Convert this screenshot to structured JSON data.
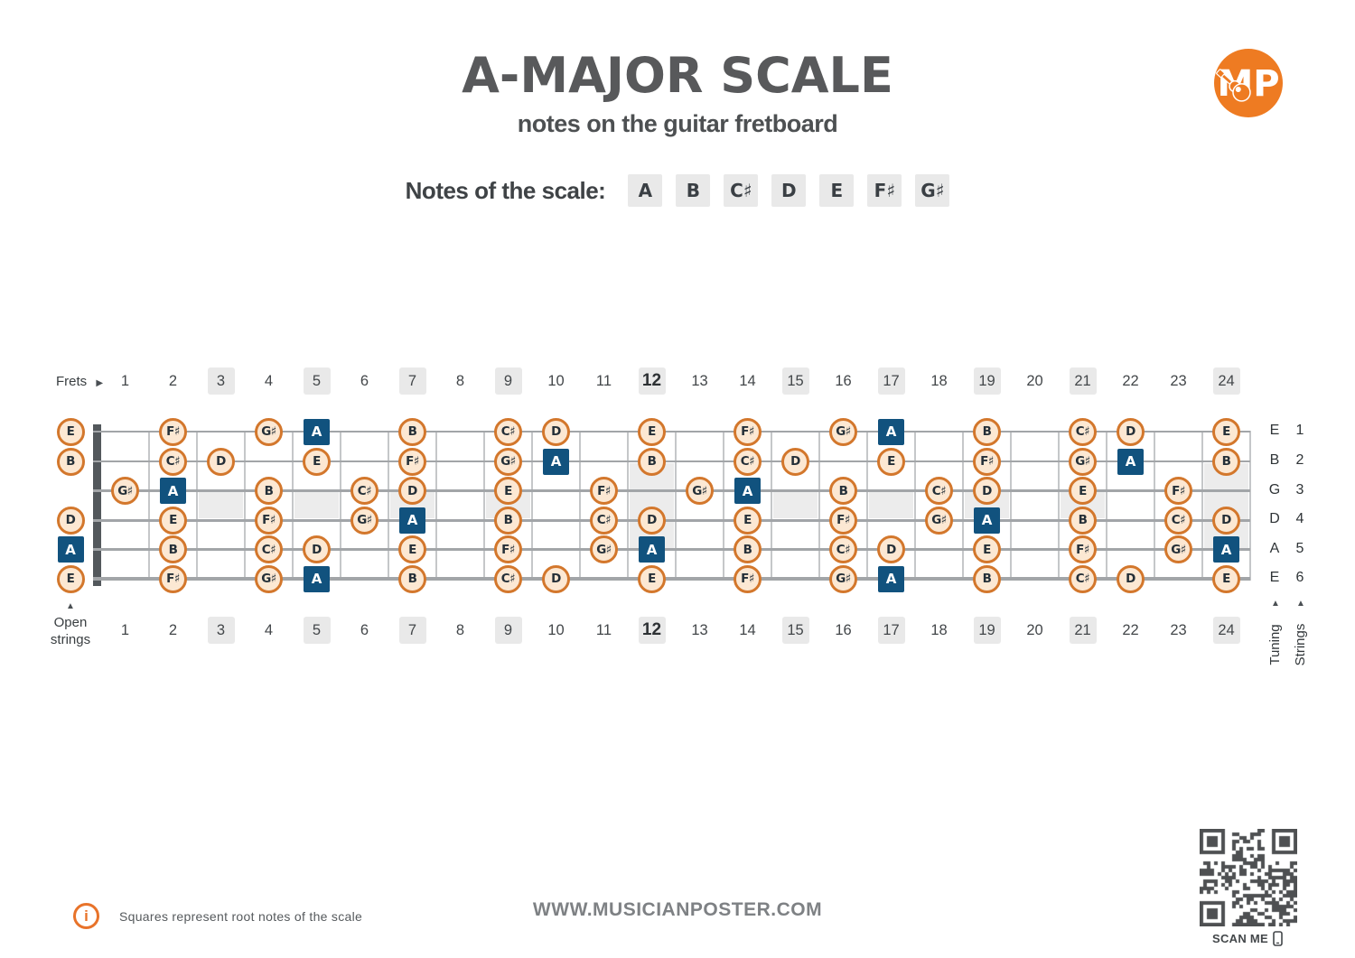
{
  "header": {
    "title": "A-MAJOR SCALE",
    "subtitle": "notes on the guitar fretboard",
    "logo_text": "MP"
  },
  "scale": {
    "label": "Notes of the scale:",
    "notes": [
      "A",
      "B",
      "C♯",
      "D",
      "E",
      "F♯",
      "G♯"
    ]
  },
  "icons": {
    "frets_arrow": "▶",
    "up_arrow": "▲"
  },
  "colors": {
    "accent_orange": "#ee7b22",
    "note_border_orange": "#d3772c",
    "note_fill": "#fce8d3",
    "root_blue": "#11527e",
    "highlight_gray": "#e9e9e9",
    "title_gray": "#58595b"
  },
  "fretboard": {
    "frets_label": "Frets",
    "open_label_line1": "Open",
    "open_label_line2": "strings",
    "tuning_label": "Tuning",
    "strings_label": "Strings",
    "fret_count": 24,
    "fret_numbers": [
      1,
      2,
      3,
      4,
      5,
      6,
      7,
      8,
      9,
      10,
      11,
      12,
      13,
      14,
      15,
      16,
      17,
      18,
      19,
      20,
      21,
      22,
      23,
      24
    ],
    "highlighted_frets": [
      3,
      5,
      7,
      9,
      12,
      15,
      17,
      19,
      21,
      24
    ],
    "bold_fret": 12,
    "single_inlay_frets": [
      3,
      5,
      7,
      9,
      15,
      17,
      19,
      21
    ],
    "double_inlay_frets": [
      12,
      24
    ],
    "strings": [
      {
        "number": 1,
        "tuning": "E",
        "open": {
          "note": "E",
          "root": false
        },
        "notes": [
          {
            "fret": 2,
            "note": "F♯"
          },
          {
            "fret": 4,
            "note": "G♯"
          },
          {
            "fret": 5,
            "note": "A",
            "root": true
          },
          {
            "fret": 7,
            "note": "B"
          },
          {
            "fret": 9,
            "note": "C♯"
          },
          {
            "fret": 10,
            "note": "D"
          },
          {
            "fret": 12,
            "note": "E"
          },
          {
            "fret": 14,
            "note": "F♯"
          },
          {
            "fret": 16,
            "note": "G♯"
          },
          {
            "fret": 17,
            "note": "A",
            "root": true
          },
          {
            "fret": 19,
            "note": "B"
          },
          {
            "fret": 21,
            "note": "C♯"
          },
          {
            "fret": 22,
            "note": "D"
          },
          {
            "fret": 24,
            "note": "E"
          }
        ]
      },
      {
        "number": 2,
        "tuning": "B",
        "open": {
          "note": "B",
          "root": false
        },
        "notes": [
          {
            "fret": 2,
            "note": "C♯"
          },
          {
            "fret": 3,
            "note": "D"
          },
          {
            "fret": 5,
            "note": "E"
          },
          {
            "fret": 7,
            "note": "F♯"
          },
          {
            "fret": 9,
            "note": "G♯"
          },
          {
            "fret": 10,
            "note": "A",
            "root": true
          },
          {
            "fret": 12,
            "note": "B"
          },
          {
            "fret": 14,
            "note": "C♯"
          },
          {
            "fret": 15,
            "note": "D"
          },
          {
            "fret": 17,
            "note": "E"
          },
          {
            "fret": 19,
            "note": "F♯"
          },
          {
            "fret": 21,
            "note": "G♯"
          },
          {
            "fret": 22,
            "note": "A",
            "root": true
          },
          {
            "fret": 24,
            "note": "B"
          }
        ]
      },
      {
        "number": 3,
        "tuning": "G",
        "open": null,
        "notes": [
          {
            "fret": 1,
            "note": "G♯"
          },
          {
            "fret": 2,
            "note": "A",
            "root": true
          },
          {
            "fret": 4,
            "note": "B"
          },
          {
            "fret": 6,
            "note": "C♯"
          },
          {
            "fret": 7,
            "note": "D"
          },
          {
            "fret": 9,
            "note": "E"
          },
          {
            "fret": 11,
            "note": "F♯"
          },
          {
            "fret": 13,
            "note": "G♯"
          },
          {
            "fret": 14,
            "note": "A",
            "root": true
          },
          {
            "fret": 16,
            "note": "B"
          },
          {
            "fret": 18,
            "note": "C♯"
          },
          {
            "fret": 19,
            "note": "D"
          },
          {
            "fret": 21,
            "note": "E"
          },
          {
            "fret": 23,
            "note": "F♯"
          }
        ]
      },
      {
        "number": 4,
        "tuning": "D",
        "open": {
          "note": "D",
          "root": false
        },
        "notes": [
          {
            "fret": 2,
            "note": "E"
          },
          {
            "fret": 4,
            "note": "F♯"
          },
          {
            "fret": 6,
            "note": "G♯"
          },
          {
            "fret": 7,
            "note": "A",
            "root": true
          },
          {
            "fret": 9,
            "note": "B"
          },
          {
            "fret": 11,
            "note": "C♯"
          },
          {
            "fret": 12,
            "note": "D"
          },
          {
            "fret": 14,
            "note": "E"
          },
          {
            "fret": 16,
            "note": "F♯"
          },
          {
            "fret": 18,
            "note": "G♯"
          },
          {
            "fret": 19,
            "note": "A",
            "root": true
          },
          {
            "fret": 21,
            "note": "B"
          },
          {
            "fret": 23,
            "note": "C♯"
          },
          {
            "fret": 24,
            "note": "D"
          }
        ]
      },
      {
        "number": 5,
        "tuning": "A",
        "open": {
          "note": "A",
          "root": true
        },
        "notes": [
          {
            "fret": 2,
            "note": "B"
          },
          {
            "fret": 4,
            "note": "C♯"
          },
          {
            "fret": 5,
            "note": "D"
          },
          {
            "fret": 7,
            "note": "E"
          },
          {
            "fret": 9,
            "note": "F♯"
          },
          {
            "fret": 11,
            "note": "G♯"
          },
          {
            "fret": 12,
            "note": "A",
            "root": true
          },
          {
            "fret": 14,
            "note": "B"
          },
          {
            "fret": 16,
            "note": "C♯"
          },
          {
            "fret": 17,
            "note": "D"
          },
          {
            "fret": 19,
            "note": "E"
          },
          {
            "fret": 21,
            "note": "F♯"
          },
          {
            "fret": 23,
            "note": "G♯"
          },
          {
            "fret": 24,
            "note": "A",
            "root": true
          }
        ]
      },
      {
        "number": 6,
        "tuning": "E",
        "open": {
          "note": "E",
          "root": false
        },
        "notes": [
          {
            "fret": 2,
            "note": "F♯"
          },
          {
            "fret": 4,
            "note": "G♯"
          },
          {
            "fret": 5,
            "note": "A",
            "root": true
          },
          {
            "fret": 7,
            "note": "B"
          },
          {
            "fret": 9,
            "note": "C♯"
          },
          {
            "fret": 10,
            "note": "D"
          },
          {
            "fret": 12,
            "note": "E"
          },
          {
            "fret": 14,
            "note": "F♯"
          },
          {
            "fret": 16,
            "note": "G♯"
          },
          {
            "fret": 17,
            "note": "A",
            "root": true
          },
          {
            "fret": 19,
            "note": "B"
          },
          {
            "fret": 21,
            "note": "C♯"
          },
          {
            "fret": 22,
            "note": "D"
          },
          {
            "fret": 24,
            "note": "E"
          }
        ]
      }
    ]
  },
  "footer": {
    "info_text": "Squares represent root notes of the scale",
    "website": "WWW.MUSICIANPOSTER.COM",
    "scan_label": "SCAN ME"
  }
}
